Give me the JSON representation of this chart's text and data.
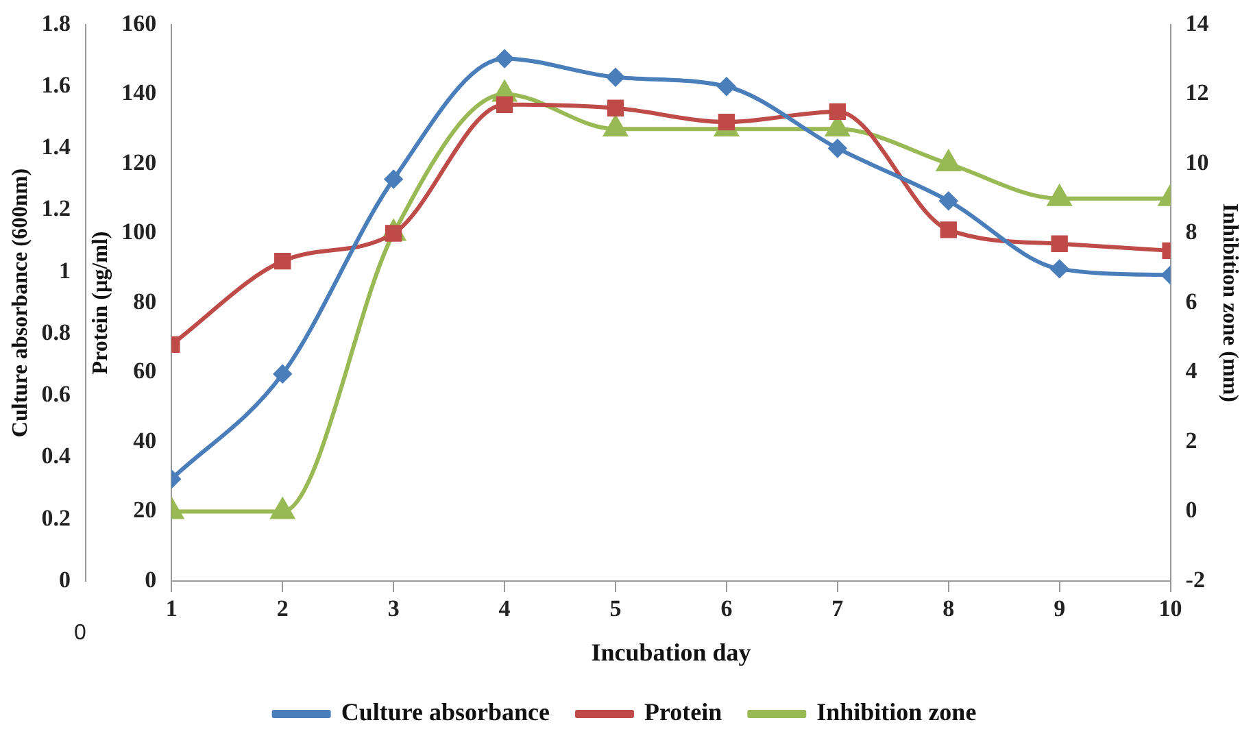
{
  "chart_data": {
    "type": "line",
    "xlabel": "Incubation day",
    "ylabel": "Protein (µg/ml)",
    "y2label": "Inhibition zone (mm)",
    "y3label": "Culture absorbance (600nm)",
    "x": [
      1,
      2,
      3,
      4,
      5,
      6,
      7,
      8,
      9,
      10
    ],
    "xlim": [
      1,
      10
    ],
    "xticks": [
      1,
      2,
      3,
      4,
      5,
      6,
      7,
      8,
      9,
      10
    ],
    "ylim": [
      0,
      160
    ],
    "yticks": [
      0,
      20,
      40,
      60,
      80,
      100,
      120,
      140,
      160
    ],
    "y2lim": [
      -2,
      14
    ],
    "y2ticks": [
      -2,
      0,
      2,
      4,
      6,
      8,
      10,
      12,
      14
    ],
    "y3lim": [
      0,
      1.8
    ],
    "y3ticks": [
      0,
      0.2,
      0.4,
      0.6,
      0.8,
      1,
      1.2,
      1.4,
      1.6,
      1.8
    ],
    "series": [
      {
        "name": "Culture absorbance",
        "color": "#4a7ebb",
        "axis": "y3",
        "marker": "diamond",
        "values": [
          0.33,
          0.67,
          1.3,
          1.69,
          1.63,
          1.6,
          1.4,
          1.23,
          1.01,
          0.99
        ]
      },
      {
        "name": "Protein",
        "color": "#be4b48",
        "axis": "y",
        "marker": "square",
        "values": [
          68,
          92,
          100,
          137,
          136,
          132,
          135,
          101,
          97,
          95
        ]
      },
      {
        "name": "Inhibition zone",
        "color": "#98b954",
        "axis": "y2",
        "marker": "triangle",
        "values": [
          0,
          0,
          8,
          12,
          11,
          11,
          11,
          10,
          9,
          9
        ]
      }
    ],
    "annotations": [
      "0"
    ],
    "grid": false,
    "legend": "bottom"
  }
}
